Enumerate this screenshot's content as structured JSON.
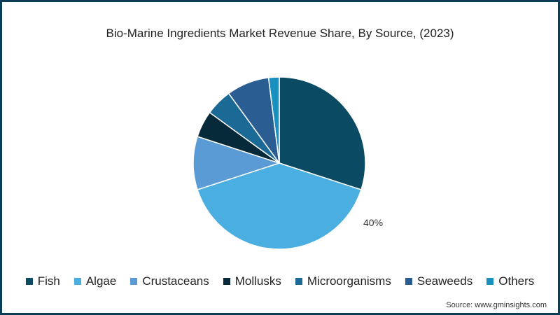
{
  "chart_data": {
    "type": "pie",
    "title": "Bio-Marine Ingredients Market Revenue Share, By Source, (2023)",
    "categories": [
      "Fish",
      "Algae",
      "Crustaceans",
      "Mollusks",
      "Microorganisms",
      "Seaweeds",
      "Others"
    ],
    "values": [
      30,
      40,
      10,
      5,
      5,
      8,
      2
    ],
    "colors": [
      "#0b4a63",
      "#4aaee0",
      "#5b9bd5",
      "#062a3a",
      "#1b6a96",
      "#2a5d91",
      "#1890c0"
    ],
    "annotations": [
      {
        "category": "Algae",
        "label": "40%"
      }
    ],
    "start_angle": "12 o'clock, clockwise",
    "legend_position": "bottom"
  },
  "title": "Bio-Marine Ingredients Market Revenue Share, By Source, (2023)",
  "label": "40%",
  "legend": [
    "Fish",
    "Algae",
    "Crustaceans",
    "Mollusks",
    "Microorganisms",
    "Seaweeds",
    "Others"
  ],
  "source": "Source: www.gminsights.com"
}
